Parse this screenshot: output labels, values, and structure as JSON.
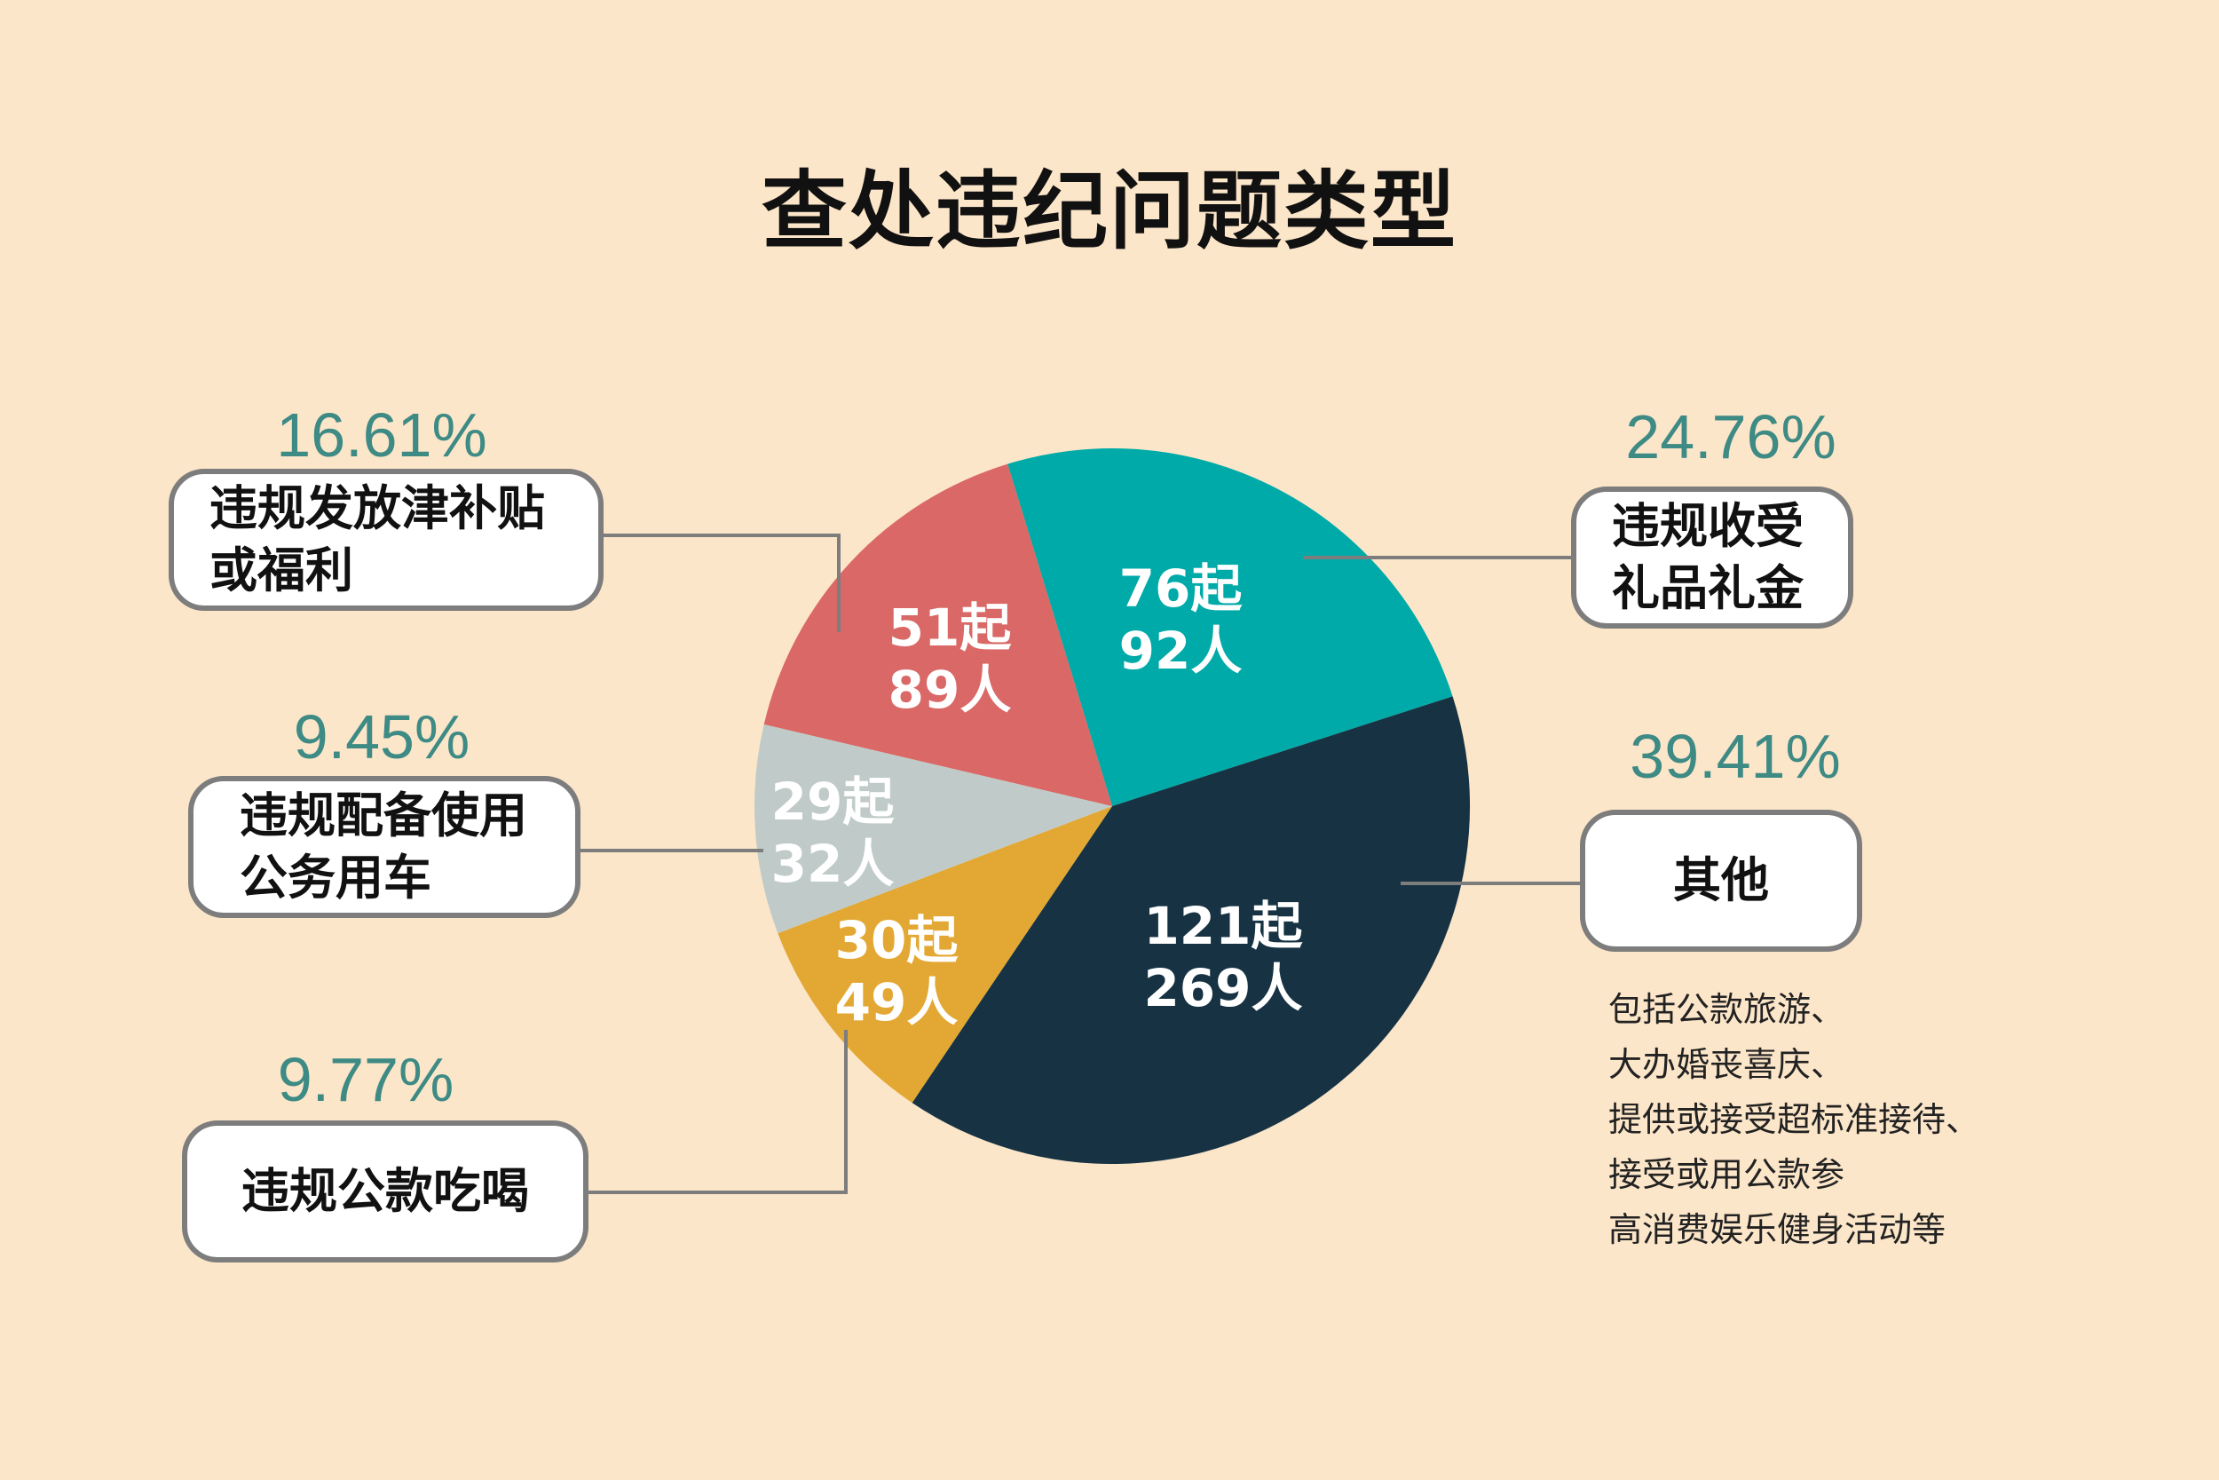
{
  "title": "查处违纪问题类型",
  "chart_data": {
    "type": "pie",
    "title": "查处违纪问题类型",
    "slices": [
      {
        "label": "违规收受\n礼品礼金",
        "percent": "24.76%",
        "value": 24.76,
        "cases": "76起",
        "people": "92人",
        "color": "#00aaa8"
      },
      {
        "label": "其他",
        "percent": "39.41%",
        "value": 39.41,
        "cases": "121起",
        "people": "269人",
        "color": "#163243"
      },
      {
        "label": "违规公款吃喝",
        "percent": "9.77%",
        "value": 9.77,
        "cases": "30起",
        "people": "49人",
        "color": "#e3a833"
      },
      {
        "label": "违规配备使用\n公务用车",
        "percent": "9.45%",
        "value": 9.45,
        "cases": "29起",
        "people": "32人",
        "color": "#c0cbc9"
      },
      {
        "label": "违规发放津补贴\n或福利",
        "percent": "16.61%",
        "value": 16.61,
        "cases": "51起",
        "people": "89人",
        "color": "#d96866"
      }
    ]
  },
  "note": {
    "lines": [
      "包括公款旅游、",
      "大办婚丧喜庆、",
      "提供或接受超标准接待、",
      "接受或用公款参",
      "高消费娱乐健身活动等"
    ]
  },
  "colors": {
    "background": "#fce6c9",
    "percent_text": "#3e8a84",
    "box_border": "#7d7d7d",
    "leader_line": "#7d7d7d"
  }
}
